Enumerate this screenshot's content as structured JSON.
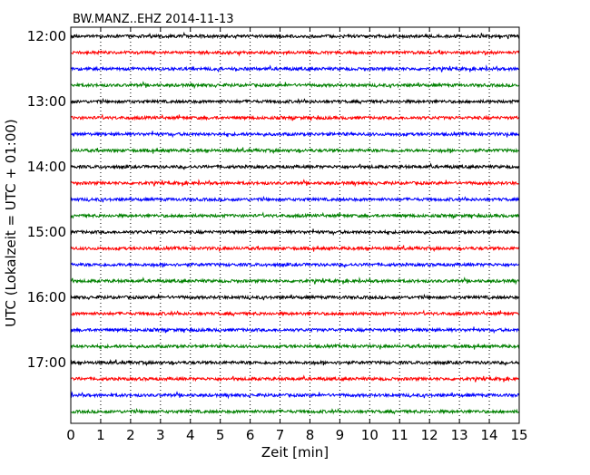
{
  "chart_data": {
    "type": "line",
    "title": "BW.MANZ..EHZ 2014-11-13",
    "xlabel": "Zeit  [min]",
    "ylabel": "UTC (Lokalzeit = UTC + 01:00)",
    "xlim": [
      0,
      15
    ],
    "x_ticks": [
      "0",
      "1",
      "2",
      "3",
      "4",
      "5",
      "6",
      "7",
      "8",
      "9",
      "10",
      "11",
      "12",
      "13",
      "14",
      "15"
    ],
    "y_ticks": [
      "12:00",
      "13:00",
      "14:00",
      "15:00",
      "16:00",
      "17:00"
    ],
    "grid": true,
    "line_colors": [
      "#000000",
      "#ff0000",
      "#0000ff",
      "#008000"
    ],
    "traces_start": "12:00",
    "trace_interval_min": 15,
    "series": [
      {
        "start": "12:00",
        "color": "#000000"
      },
      {
        "start": "12:15",
        "color": "#ff0000"
      },
      {
        "start": "12:30",
        "color": "#0000ff"
      },
      {
        "start": "12:45",
        "color": "#008000"
      },
      {
        "start": "13:00",
        "color": "#000000"
      },
      {
        "start": "13:15",
        "color": "#ff0000"
      },
      {
        "start": "13:30",
        "color": "#0000ff"
      },
      {
        "start": "13:45",
        "color": "#008000"
      },
      {
        "start": "14:00",
        "color": "#000000"
      },
      {
        "start": "14:15",
        "color": "#ff0000"
      },
      {
        "start": "14:30",
        "color": "#0000ff"
      },
      {
        "start": "14:45",
        "color": "#008000"
      },
      {
        "start": "15:00",
        "color": "#000000"
      },
      {
        "start": "15:15",
        "color": "#ff0000"
      },
      {
        "start": "15:30",
        "color": "#0000ff"
      },
      {
        "start": "15:45",
        "color": "#008000"
      },
      {
        "start": "16:00",
        "color": "#000000"
      },
      {
        "start": "16:15",
        "color": "#ff0000"
      },
      {
        "start": "16:30",
        "color": "#0000ff"
      },
      {
        "start": "16:45",
        "color": "#008000"
      },
      {
        "start": "17:00",
        "color": "#000000"
      },
      {
        "start": "17:15",
        "color": "#ff0000"
      },
      {
        "start": "17:30",
        "color": "#0000ff"
      },
      {
        "start": "17:45",
        "color": "#008000"
      }
    ]
  }
}
